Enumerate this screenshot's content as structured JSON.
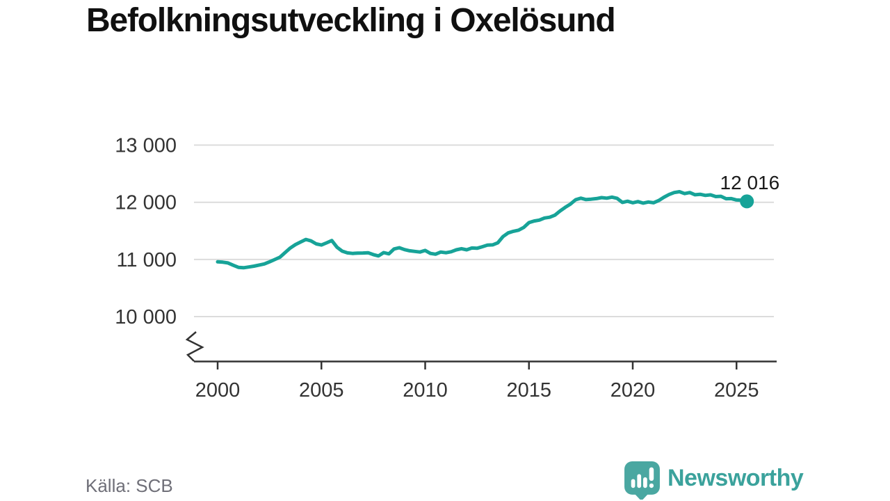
{
  "title": "Befolkningsutveckling i Oxelösund",
  "source": "Källa: SCB",
  "end_label": "12 016",
  "branding": {
    "name": "Newsworthy",
    "icon": "speech-bubble-bar-chart-exclamation-icon"
  },
  "colors": {
    "line": "#17a398",
    "marker": "#17a398",
    "grid": "#dcdcdc",
    "axis": "#333333",
    "tick_text": "#333333",
    "value_text": "#1a1a1a",
    "title_text": "#101010",
    "source_text": "#6f6f78",
    "brand": "#3ba29c",
    "brand_icon": "#4aa7a1"
  },
  "chart_data": {
    "type": "line",
    "title": "Befolkningsutveckling i Oxelösund",
    "series_name": "Befolkning i Oxelösund",
    "xlabel": "",
    "ylabel": "",
    "grid": "horizontal",
    "legend_position": "none",
    "axis_break_bottom": true,
    "x_axis": {
      "range": [
        1999.0,
        2027.0
      ],
      "ticks": [
        {
          "label": "2000",
          "value": 2000
        },
        {
          "label": "2005",
          "value": 2005
        },
        {
          "label": "2010",
          "value": 2010
        },
        {
          "label": "2015",
          "value": 2015
        },
        {
          "label": "2020",
          "value": 2020
        },
        {
          "label": "2025",
          "value": 2025
        }
      ]
    },
    "y_axis": {
      "range": [
        9600,
        13400
      ],
      "ticks": [
        {
          "label": "13 000",
          "value": 13000
        },
        {
          "label": "12 000",
          "value": 12000
        },
        {
          "label": "11 000",
          "value": 11000
        },
        {
          "label": "10 000",
          "value": 10000
        }
      ]
    },
    "last_point": {
      "x": 2025.5,
      "value": 12016,
      "label": "12 016"
    },
    "x": [
      2000,
      2000.25,
      2000.5,
      2000.75,
      2001,
      2001.25,
      2001.5,
      2001.75,
      2002,
      2002.25,
      2002.5,
      2002.75,
      2003,
      2003.25,
      2003.5,
      2003.75,
      2004,
      2004.25,
      2004.5,
      2004.75,
      2005,
      2005.25,
      2005.5,
      2005.75,
      2006,
      2006.25,
      2006.5,
      2006.75,
      2007,
      2007.25,
      2007.5,
      2007.75,
      2008,
      2008.25,
      2008.5,
      2008.75,
      2009,
      2009.25,
      2009.5,
      2009.75,
      2010,
      2010.25,
      2010.5,
      2010.75,
      2011,
      2011.25,
      2011.5,
      2011.75,
      2012,
      2012.25,
      2012.5,
      2012.75,
      2013,
      2013.25,
      2013.5,
      2013.75,
      2014,
      2014.25,
      2014.5,
      2014.75,
      2015,
      2015.25,
      2015.5,
      2015.75,
      2016,
      2016.25,
      2016.5,
      2016.75,
      2017,
      2017.25,
      2017.5,
      2017.75,
      2018,
      2018.25,
      2018.5,
      2018.75,
      2019,
      2019.25,
      2019.5,
      2019.75,
      2020,
      2020.25,
      2020.5,
      2020.75,
      2021,
      2021.25,
      2021.5,
      2021.75,
      2022,
      2022.25,
      2022.5,
      2022.75,
      2023,
      2023.25,
      2023.5,
      2023.75,
      2024,
      2024.25,
      2024.5,
      2024.75,
      2025,
      2025.25,
      2025.5
    ],
    "values": [
      10958,
      10952,
      10938,
      10898,
      10862,
      10855,
      10868,
      10882,
      10902,
      10922,
      10958,
      10998,
      11040,
      11120,
      11200,
      11260,
      11305,
      11350,
      11325,
      11272,
      11252,
      11290,
      11330,
      11215,
      11145,
      11115,
      11105,
      11110,
      11112,
      11118,
      11085,
      11062,
      11120,
      11098,
      11183,
      11205,
      11172,
      11152,
      11140,
      11130,
      11158,
      11105,
      11092,
      11130,
      11118,
      11135,
      11168,
      11188,
      11168,
      11200,
      11195,
      11222,
      11250,
      11255,
      11292,
      11400,
      11465,
      11492,
      11512,
      11560,
      11645,
      11672,
      11688,
      11725,
      11738,
      11775,
      11848,
      11912,
      11970,
      12045,
      12072,
      12048,
      12055,
      12065,
      12082,
      12072,
      12090,
      12068,
      11998,
      12018,
      11992,
      12012,
      11985,
      12005,
      11992,
      12030,
      12088,
      12135,
      12170,
      12185,
      12152,
      12170,
      12132,
      12140,
      12120,
      12130,
      12100,
      12105,
      12062,
      12065,
      12040,
      12035,
      12016
    ]
  }
}
